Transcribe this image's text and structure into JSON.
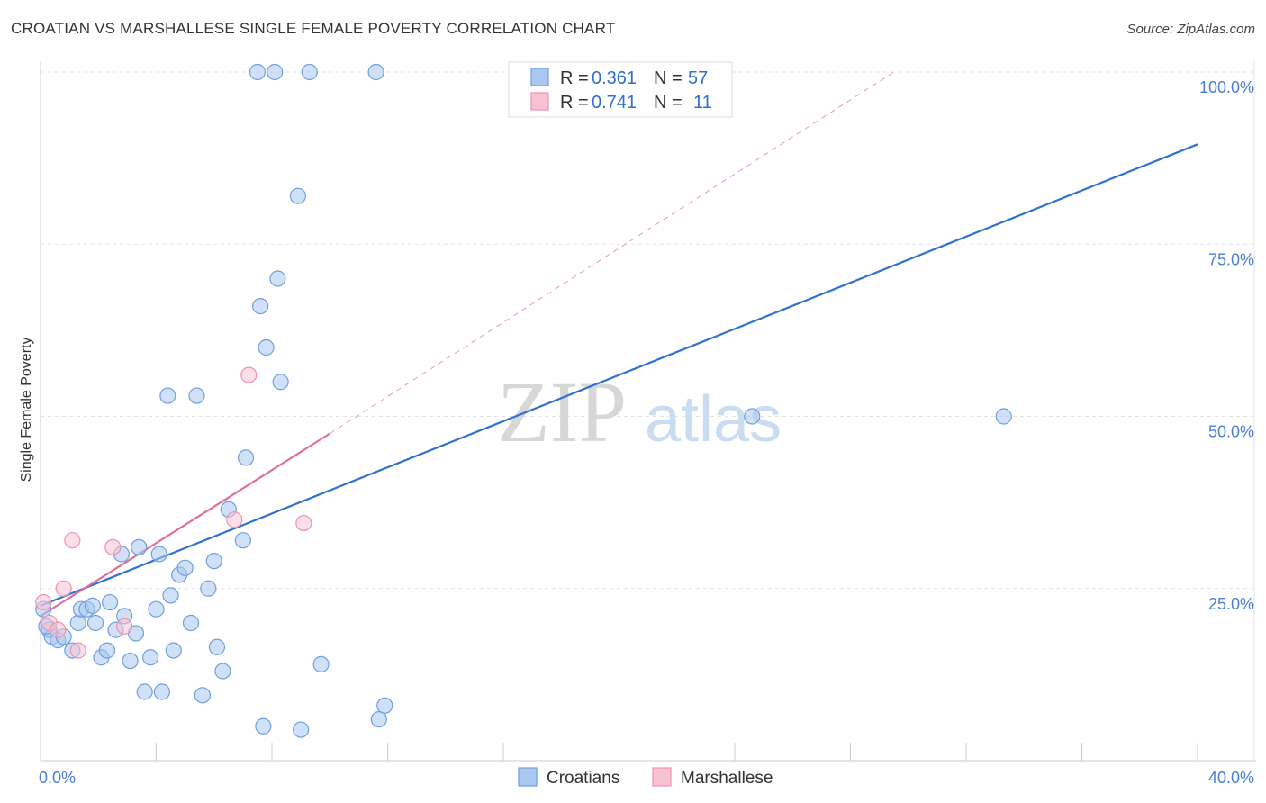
{
  "title": "CROATIAN VS MARSHALLESE SINGLE FEMALE POVERTY CORRELATION CHART",
  "source": "Source: ZipAtlas.com",
  "watermark": {
    "zip": "ZIP",
    "atlas": "atlas"
  },
  "colors": {
    "blue_fill": "#aac8f0",
    "blue_stroke": "#6f9fe0",
    "blue_line": "#2f72d0",
    "pink_fill": "#f7c3d3",
    "pink_stroke": "#ee93b0",
    "pink_line": "#e07099",
    "grid": "#e3e3e3",
    "tick_text": "#4a7fd0"
  },
  "legend": {
    "rows": [
      {
        "r_label": "R = ",
        "r_value": "0.361",
        "n_label": "N = ",
        "n_value": "57",
        "series": "blue"
      },
      {
        "r_label": "R = ",
        "r_value": "0.741",
        "n_label": "N = ",
        "n_value": "11",
        "series": "pink"
      }
    ]
  },
  "bottom_legend": {
    "items": [
      "Croatians",
      "Marshallese"
    ]
  },
  "chart_data": {
    "type": "scatter",
    "title": "CROATIAN VS MARSHALLESE SINGLE FEMALE POVERTY CORRELATION CHART",
    "xlabel": "",
    "ylabel": "Single Female Poverty",
    "xlim": [
      0,
      40
    ],
    "ylim": [
      0,
      100
    ],
    "x_tick_labels": [
      "0.0%",
      "40.0%"
    ],
    "y_tick_labels": [
      "100.0%",
      "75.0%",
      "50.0%",
      "25.0%"
    ],
    "y_tick_values": [
      100,
      75,
      50,
      25
    ],
    "x_grid_values": [
      0,
      4,
      8,
      12,
      16,
      20,
      24,
      28,
      32,
      36,
      40
    ],
    "grid": true,
    "series": [
      {
        "name": "Croatians",
        "color": "blue",
        "r": 0.361,
        "n": 57,
        "points": [
          [
            0.1,
            22
          ],
          [
            0.3,
            19
          ],
          [
            0.4,
            18
          ],
          [
            0.6,
            17.5
          ],
          [
            0.8,
            18
          ],
          [
            1.1,
            16
          ],
          [
            1.3,
            20
          ],
          [
            1.4,
            22
          ],
          [
            1.6,
            22
          ],
          [
            1.8,
            22.5
          ],
          [
            1.9,
            20
          ],
          [
            2.1,
            15
          ],
          [
            2.3,
            16
          ],
          [
            2.4,
            23
          ],
          [
            2.6,
            19
          ],
          [
            2.8,
            30
          ],
          [
            2.9,
            21
          ],
          [
            3.1,
            14.5
          ],
          [
            3.3,
            18.5
          ],
          [
            3.4,
            31
          ],
          [
            3.6,
            10
          ],
          [
            3.8,
            15
          ],
          [
            4.0,
            22
          ],
          [
            4.1,
            30
          ],
          [
            4.2,
            10
          ],
          [
            4.4,
            53
          ],
          [
            4.5,
            24
          ],
          [
            4.6,
            16
          ],
          [
            4.8,
            27
          ],
          [
            5.0,
            28
          ],
          [
            5.2,
            20
          ],
          [
            5.4,
            53
          ],
          [
            5.6,
            9.5
          ],
          [
            5.8,
            25
          ],
          [
            6.0,
            29
          ],
          [
            6.1,
            16.5
          ],
          [
            6.3,
            13
          ],
          [
            6.5,
            36.5
          ],
          [
            7.0,
            32
          ],
          [
            7.1,
            44
          ],
          [
            7.5,
            100
          ],
          [
            7.6,
            66
          ],
          [
            7.7,
            5
          ],
          [
            7.8,
            60
          ],
          [
            8.1,
            100
          ],
          [
            8.2,
            70
          ],
          [
            8.3,
            55
          ],
          [
            8.9,
            82
          ],
          [
            9.0,
            4.5
          ],
          [
            9.3,
            100
          ],
          [
            9.7,
            14
          ],
          [
            11.6,
            100
          ],
          [
            11.7,
            6
          ],
          [
            11.9,
            8
          ],
          [
            24.6,
            50
          ],
          [
            33.3,
            50
          ],
          [
            0.2,
            19.5
          ]
        ],
        "trend": {
          "x": [
            0,
            40
          ],
          "y": [
            22.5,
            89.5
          ]
        }
      },
      {
        "name": "Marshallese",
        "color": "pink",
        "r": 0.741,
        "n": 11,
        "points": [
          [
            0.1,
            23
          ],
          [
            0.3,
            20
          ],
          [
            0.6,
            19
          ],
          [
            0.8,
            25
          ],
          [
            1.1,
            32
          ],
          [
            1.3,
            16
          ],
          [
            2.5,
            31
          ],
          [
            2.9,
            19.5
          ],
          [
            7.2,
            56
          ],
          [
            6.7,
            35
          ],
          [
            9.1,
            34.5
          ]
        ],
        "trend": {
          "x": [
            0,
            10
          ],
          "y": [
            21,
            47.5
          ]
        },
        "trend_extension": {
          "x": [
            10,
            29.5
          ],
          "y": [
            47.5,
            100
          ]
        }
      }
    ]
  },
  "y_axis_label": "Single Female Poverty"
}
